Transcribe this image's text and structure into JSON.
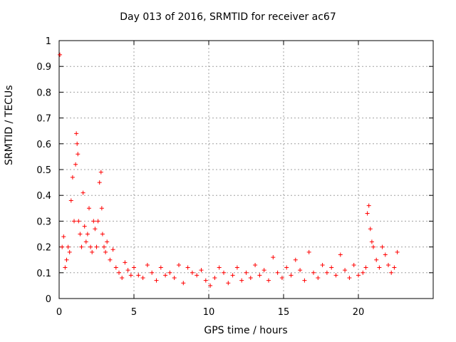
{
  "chart_data": {
    "type": "scatter",
    "title": "Day 013 of 2016, SRMTID for receiver ac67",
    "xlabel": "GPS time / hours",
    "ylabel": "SRMTID / TECUs",
    "xlim": [
      0,
      25
    ],
    "ylim": [
      0,
      1
    ],
    "xticks": [
      0,
      5,
      10,
      15,
      20
    ],
    "xtick_labels": [
      "0",
      "5",
      "10",
      "15",
      "20"
    ],
    "yticks": [
      0,
      0.1,
      0.2,
      0.3,
      0.4,
      0.5,
      0.6,
      0.7,
      0.8,
      0.9,
      1
    ],
    "ytick_labels": [
      "0",
      "0.1",
      "0.2",
      "0.3",
      "0.4",
      "0.5",
      "0.6",
      "0.7",
      "0.8",
      "0.9",
      "1"
    ],
    "grid": true,
    "marker": "+",
    "series_color": "#ff0000",
    "series": [
      {
        "name": "SRMTID",
        "x": [
          0.05,
          0.2,
          0.3,
          0.4,
          0.5,
          0.6,
          0.7,
          0.8,
          0.9,
          1.0,
          1.1,
          1.15,
          1.2,
          1.25,
          1.3,
          1.4,
          1.5,
          1.6,
          1.7,
          1.8,
          1.9,
          2.0,
          2.1,
          2.2,
          2.3,
          2.4,
          2.5,
          2.6,
          2.7,
          2.8,
          2.85,
          2.9,
          3.0,
          3.1,
          3.2,
          3.4,
          3.6,
          3.8,
          4.0,
          4.2,
          4.4,
          4.6,
          4.8,
          5.0,
          5.3,
          5.6,
          5.9,
          6.2,
          6.5,
          6.8,
          7.1,
          7.4,
          7.7,
          8.0,
          8.3,
          8.6,
          8.9,
          9.2,
          9.5,
          9.8,
          10.1,
          10.4,
          10.7,
          11.0,
          11.3,
          11.6,
          11.9,
          12.2,
          12.5,
          12.8,
          13.1,
          13.4,
          13.7,
          14.0,
          14.3,
          14.6,
          14.9,
          15.2,
          15.5,
          15.8,
          16.1,
          16.4,
          16.7,
          17.0,
          17.3,
          17.6,
          17.9,
          18.2,
          18.5,
          18.8,
          19.1,
          19.4,
          19.7,
          20.0,
          20.3,
          20.5,
          20.6,
          20.7,
          20.8,
          20.9,
          21.0,
          21.2,
          21.4,
          21.6,
          21.8,
          22.0,
          22.2,
          22.4,
          22.6
        ],
        "y": [
          0.945,
          0.2,
          0.24,
          0.12,
          0.15,
          0.2,
          0.18,
          0.38,
          0.47,
          0.3,
          0.52,
          0.64,
          0.6,
          0.56,
          0.3,
          0.25,
          0.2,
          0.41,
          0.28,
          0.22,
          0.25,
          0.35,
          0.2,
          0.18,
          0.3,
          0.27,
          0.2,
          0.3,
          0.45,
          0.49,
          0.35,
          0.25,
          0.2,
          0.18,
          0.22,
          0.15,
          0.19,
          0.12,
          0.1,
          0.08,
          0.14,
          0.11,
          0.09,
          0.12,
          0.09,
          0.08,
          0.13,
          0.1,
          0.07,
          0.12,
          0.09,
          0.1,
          0.08,
          0.13,
          0.06,
          0.12,
          0.1,
          0.09,
          0.11,
          0.07,
          0.05,
          0.08,
          0.12,
          0.1,
          0.06,
          0.09,
          0.12,
          0.07,
          0.1,
          0.08,
          0.13,
          0.09,
          0.11,
          0.07,
          0.16,
          0.1,
          0.08,
          0.12,
          0.09,
          0.15,
          0.11,
          0.07,
          0.18,
          0.1,
          0.08,
          0.13,
          0.1,
          0.12,
          0.09,
          0.17,
          0.11,
          0.08,
          0.13,
          0.09,
          0.1,
          0.12,
          0.33,
          0.36,
          0.27,
          0.22,
          0.2,
          0.15,
          0.12,
          0.2,
          0.17,
          0.13,
          0.1,
          0.12,
          0.18
        ]
      }
    ]
  }
}
